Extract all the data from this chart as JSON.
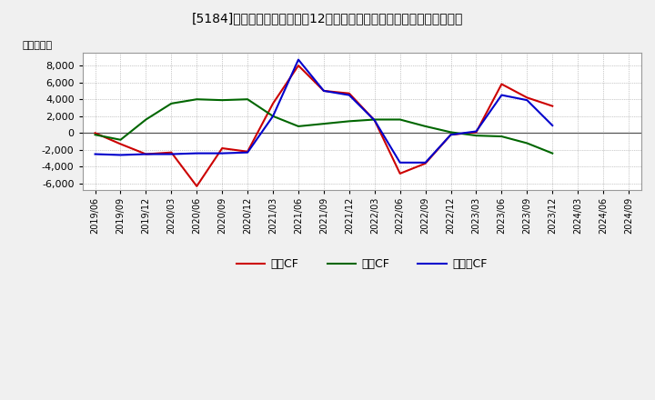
{
  "title": "[　5184　] キャッシュフローの12か月移動合計の対前年同期増減額の推移",
  "title_str": "[5184]　キャッシュフローの12か月移動合計の対前年同期増減額の推移",
  "ylabel": "（百万円）",
  "ylim": [
    -6800,
    9500
  ],
  "yticks": [
    -6000,
    -4000,
    -2000,
    0,
    2000,
    4000,
    6000,
    8000
  ],
  "background_color": "#f0f0f0",
  "plot_bg_color": "#ffffff",
  "grid_color": "#aaaaaa",
  "x_labels": [
    "2019/06",
    "2019/09",
    "2019/12",
    "2020/03",
    "2020/06",
    "2020/09",
    "2020/12",
    "2021/03",
    "2021/06",
    "2021/09",
    "2021/12",
    "2022/03",
    "2022/06",
    "2022/09",
    "2022/12",
    "2023/03",
    "2023/06",
    "2023/09",
    "2023/12",
    "2024/03",
    "2024/06",
    "2024/09"
  ],
  "series": {
    "営業CF": {
      "color": "#cc0000",
      "values": [
        0,
        -1300,
        -2500,
        -2300,
        -6300,
        -1800,
        -2200,
        3500,
        8000,
        5000,
        4700,
        1500,
        -4800,
        -3600,
        -200,
        100,
        5800,
        4200,
        3200,
        null,
        null,
        null
      ]
    },
    "投資CF": {
      "color": "#006600",
      "values": [
        -200,
        -800,
        1600,
        3500,
        4000,
        3900,
        4000,
        2000,
        800,
        1100,
        1400,
        1600,
        1600,
        800,
        100,
        -300,
        -400,
        -1200,
        -2400,
        null,
        null,
        null
      ]
    },
    "フリーCF": {
      "color": "#0000cc",
      "values": [
        -2500,
        -2600,
        -2500,
        -2500,
        -2400,
        -2400,
        -2300,
        2000,
        8700,
        5000,
        4500,
        1500,
        -3500,
        -3500,
        -200,
        200,
        4500,
        3900,
        900,
        null,
        null,
        null
      ]
    }
  },
  "legend_entries": [
    "営業CF",
    "投資CF",
    "フリーCF"
  ],
  "legend_colors": [
    "#cc0000",
    "#006600",
    "#0000cc"
  ],
  "legend_labels": [
    "営業CF",
    "投資CF",
    "フリーCF"
  ]
}
